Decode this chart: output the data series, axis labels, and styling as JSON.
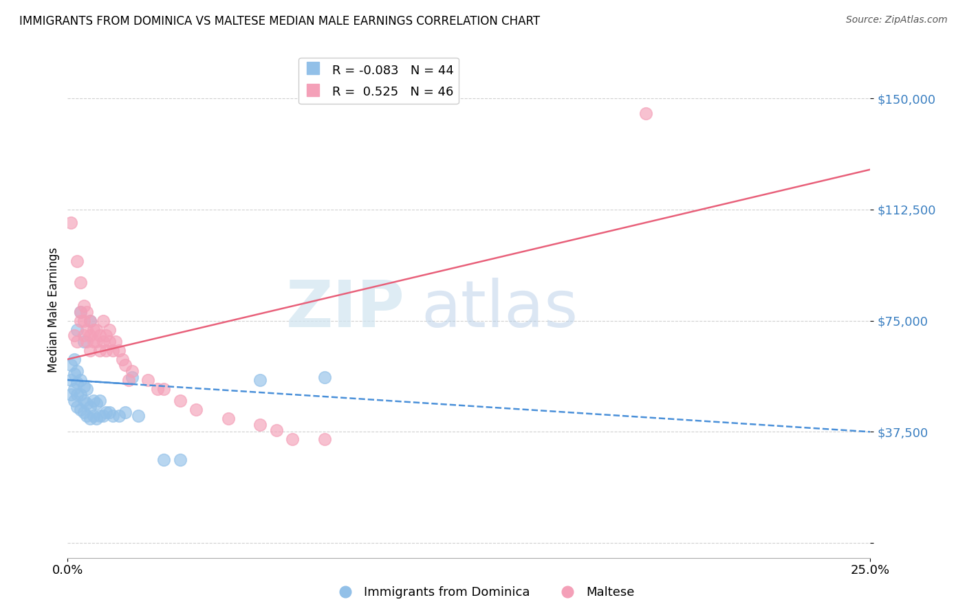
{
  "title": "IMMIGRANTS FROM DOMINICA VS MALTESE MEDIAN MALE EARNINGS CORRELATION CHART",
  "source": "Source: ZipAtlas.com",
  "ylabel": "Median Male Earnings",
  "yticks": [
    0,
    37500,
    75000,
    112500,
    150000
  ],
  "ytick_labels": [
    "",
    "$37,500",
    "$75,000",
    "$112,500",
    "$150,000"
  ],
  "xlim": [
    0.0,
    0.25
  ],
  "ylim": [
    -5000,
    162500
  ],
  "dominica_R": -0.083,
  "dominica_N": 44,
  "maltese_R": 0.525,
  "maltese_N": 46,
  "dominica_color": "#92c0e8",
  "maltese_color": "#f4a0b8",
  "dominica_line_color": "#4a90d9",
  "maltese_line_color": "#e8607a",
  "watermark_zip": "ZIP",
  "watermark_atlas": "atlas",
  "dominica_line_x0": 0.0,
  "dominica_line_y0": 55000,
  "dominica_line_x1": 0.25,
  "dominica_line_y1": 37500,
  "maltese_line_x0": 0.0,
  "maltese_line_y0": 62000,
  "maltese_line_x1": 0.25,
  "maltese_line_y1": 126000,
  "dominica_scatter_x": [
    0.001,
    0.001,
    0.001,
    0.002,
    0.002,
    0.002,
    0.002,
    0.003,
    0.003,
    0.003,
    0.003,
    0.003,
    0.004,
    0.004,
    0.004,
    0.004,
    0.005,
    0.005,
    0.005,
    0.005,
    0.006,
    0.006,
    0.006,
    0.007,
    0.007,
    0.007,
    0.008,
    0.008,
    0.009,
    0.009,
    0.01,
    0.01,
    0.011,
    0.012,
    0.013,
    0.014,
    0.016,
    0.018,
    0.02,
    0.022,
    0.03,
    0.035,
    0.06,
    0.08
  ],
  "dominica_scatter_y": [
    50000,
    55000,
    60000,
    48000,
    52000,
    57000,
    62000,
    46000,
    50000,
    54000,
    58000,
    72000,
    45000,
    50000,
    55000,
    78000,
    44000,
    48000,
    53000,
    68000,
    43000,
    47000,
    52000,
    42000,
    46000,
    75000,
    43000,
    48000,
    42000,
    47000,
    43000,
    48000,
    43000,
    44000,
    44000,
    43000,
    43000,
    44000,
    56000,
    43000,
    28000,
    28000,
    55000,
    56000
  ],
  "maltese_scatter_x": [
    0.001,
    0.002,
    0.003,
    0.003,
    0.004,
    0.004,
    0.004,
    0.005,
    0.005,
    0.005,
    0.006,
    0.006,
    0.006,
    0.007,
    0.007,
    0.007,
    0.008,
    0.008,
    0.009,
    0.009,
    0.01,
    0.01,
    0.011,
    0.011,
    0.012,
    0.012,
    0.013,
    0.013,
    0.014,
    0.015,
    0.016,
    0.017,
    0.018,
    0.019,
    0.02,
    0.025,
    0.028,
    0.03,
    0.035,
    0.04,
    0.05,
    0.06,
    0.065,
    0.07,
    0.08,
    0.18
  ],
  "maltese_scatter_y": [
    108000,
    70000,
    95000,
    68000,
    75000,
    78000,
    88000,
    70000,
    75000,
    80000,
    68000,
    72000,
    78000,
    65000,
    70000,
    75000,
    68000,
    72000,
    68000,
    72000,
    65000,
    70000,
    68000,
    75000,
    65000,
    70000,
    68000,
    72000,
    65000,
    68000,
    65000,
    62000,
    60000,
    55000,
    58000,
    55000,
    52000,
    52000,
    48000,
    45000,
    42000,
    40000,
    38000,
    35000,
    35000,
    145000
  ]
}
